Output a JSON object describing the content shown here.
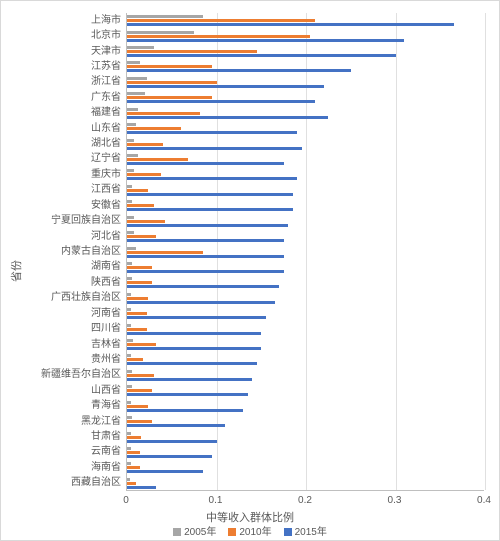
{
  "chart": {
    "type": "bar-horizontal-grouped",
    "background_color": "#ffffff",
    "border_color": "#d9d9d9",
    "grid_color": "#e0e0e0",
    "axis_line_color": "#bfbfbf",
    "text_color": "#595959",
    "x_axis_title": "中等收入群体比例",
    "y_axis_title": "省份",
    "label_fontsize": 10,
    "axis_title_fontsize": 11,
    "xlim": [
      0,
      0.4
    ],
    "xtick_step": 0.1,
    "xticks": [
      0,
      0.1,
      0.2,
      0.3,
      0.4
    ],
    "series": [
      {
        "name": "2005年",
        "color": "#a6a6a6"
      },
      {
        "name": "2010年",
        "color": "#ed7d31"
      },
      {
        "name": "2015年",
        "color": "#4472c4"
      }
    ],
    "categories": [
      "上海市",
      "北京市",
      "天津市",
      "江苏省",
      "浙江省",
      "广东省",
      "福建省",
      "山东省",
      "湖北省",
      "辽宁省",
      "重庆市",
      "江西省",
      "安徽省",
      "宁夏回族自治区",
      "河北省",
      "内蒙古自治区",
      "湖南省",
      "陕西省",
      "广西壮族自治区",
      "河南省",
      "四川省",
      "吉林省",
      "贵州省",
      "新疆维吾尔自治区",
      "山西省",
      "青海省",
      "黑龙江省",
      "甘肃省",
      "云南省",
      "海南省",
      "西藏自治区"
    ],
    "values": {
      "2005年": [
        0.085,
        0.075,
        0.03,
        0.015,
        0.022,
        0.02,
        0.012,
        0.01,
        0.008,
        0.012,
        0.008,
        0.006,
        0.006,
        0.008,
        0.008,
        0.01,
        0.006,
        0.006,
        0.005,
        0.005,
        0.005,
        0.007,
        0.004,
        0.006,
        0.006,
        0.005,
        0.006,
        0.004,
        0.004,
        0.004,
        0.003
      ],
      "2010年": [
        0.21,
        0.205,
        0.145,
        0.095,
        0.1,
        0.095,
        0.082,
        0.06,
        0.04,
        0.068,
        0.038,
        0.024,
        0.03,
        0.042,
        0.032,
        0.085,
        0.028,
        0.028,
        0.024,
        0.022,
        0.022,
        0.032,
        0.018,
        0.03,
        0.028,
        0.024,
        0.028,
        0.016,
        0.015,
        0.014,
        0.01
      ],
      "2015年": [
        0.365,
        0.31,
        0.3,
        0.25,
        0.22,
        0.21,
        0.225,
        0.19,
        0.195,
        0.175,
        0.19,
        0.185,
        0.185,
        0.18,
        0.175,
        0.175,
        0.175,
        0.17,
        0.165,
        0.155,
        0.15,
        0.15,
        0.145,
        0.14,
        0.135,
        0.13,
        0.11,
        0.1,
        0.095,
        0.085,
        0.032
      ]
    }
  }
}
